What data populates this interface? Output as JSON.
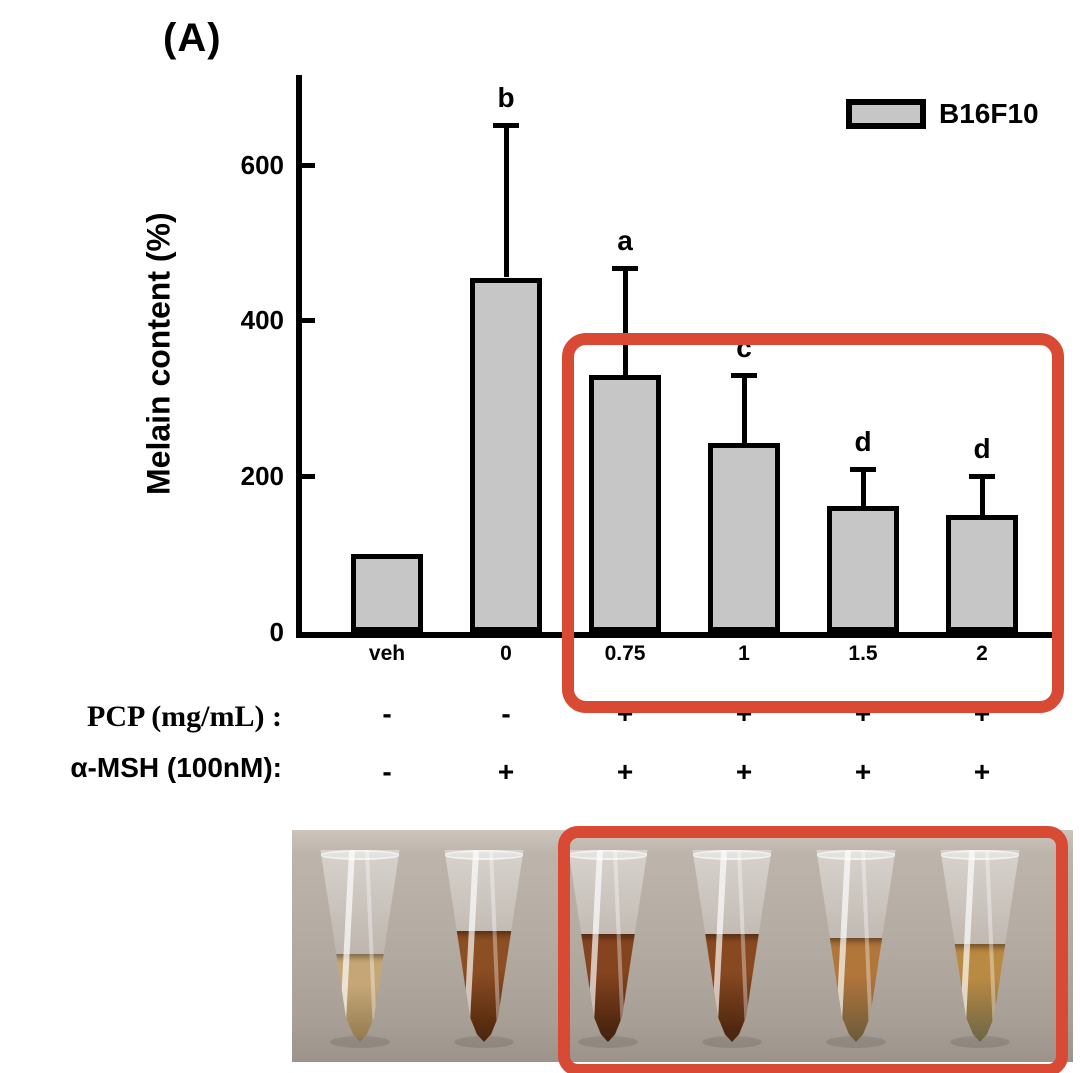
{
  "figure": {
    "panel_label": "(A)",
    "background": "#ffffff"
  },
  "chart_data": {
    "type": "bar",
    "ylabel": "Melain content (%)",
    "ylim": [
      0,
      715
    ],
    "yticks": [
      0,
      200,
      400,
      600
    ],
    "categories": [
      "veh",
      "0",
      "0.75",
      "1",
      "1.5",
      "2"
    ],
    "series": [
      {
        "name": "B16F10",
        "values": [
          100,
          455,
          330,
          243,
          162,
          150
        ],
        "errors_plus": [
          0,
          198,
          140,
          90,
          50,
          53
        ],
        "sig_letters": [
          "",
          "b",
          "a",
          "c",
          "d",
          "d"
        ]
      }
    ],
    "legend": {
      "entries": [
        "B16F10"
      ],
      "position": "top-right"
    },
    "grid": false,
    "bar_fill_color": "#c6c6c6",
    "bar_border_color": "#000000"
  },
  "treatments": {
    "rows": [
      {
        "label": "PCP (mg/mL) :",
        "values": [
          "-",
          "-",
          "+",
          "+",
          "+",
          "+"
        ]
      },
      {
        "label": "α-MSH (100nM):",
        "values": [
          "-",
          "+",
          "+",
          "+",
          "+",
          "+"
        ]
      }
    ]
  },
  "highlight_annotation": {
    "color": "#d84a33",
    "note": "red rounded boxes around PCP-treated groups (0.75–2 mg/mL) in chart and tube photo"
  },
  "photo": {
    "description": "six microcentrifuge tubes with melanin-pigmented supernatant on gray bench",
    "tubes": [
      {
        "condition": "veh",
        "liquid_color_top": "#c9a364",
        "liquid_color_bottom": "#8f6e38",
        "fill_level": 0.46,
        "opacity": 0.75
      },
      {
        "condition": "0",
        "liquid_color_top": "#8a4a1e",
        "liquid_color_bottom": "#4f2409",
        "fill_level": 0.58,
        "opacity": 0.96
      },
      {
        "condition": "0.75",
        "liquid_color_top": "#83401a",
        "liquid_color_bottom": "#47200a",
        "fill_level": 0.56,
        "opacity": 0.97
      },
      {
        "condition": "1",
        "liquid_color_top": "#86451c",
        "liquid_color_bottom": "#4a2209",
        "fill_level": 0.56,
        "opacity": 0.96
      },
      {
        "condition": "1.5",
        "liquid_color_top": "#b06f2e",
        "liquid_color_bottom": "#6e5630",
        "fill_level": 0.54,
        "opacity": 0.9
      },
      {
        "condition": "2",
        "liquid_color_top": "#b98433",
        "liquid_color_bottom": "#6e6138",
        "fill_level": 0.51,
        "opacity": 0.88
      }
    ]
  }
}
